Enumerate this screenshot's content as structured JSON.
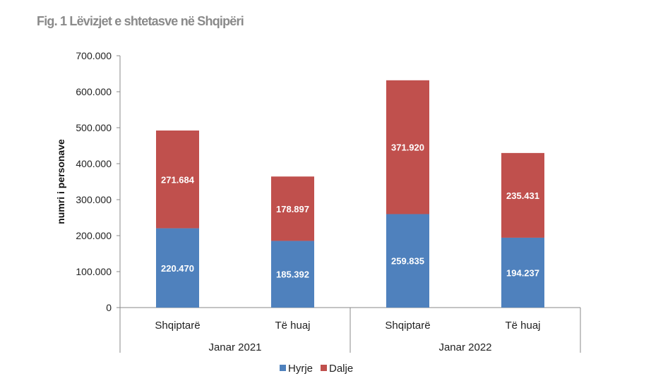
{
  "chart_data": {
    "type": "bar",
    "stacked": true,
    "title": "Fig. 1 Lëvizjet e shtetasve në Shqipëri",
    "xlabel": "",
    "ylabel": "numri i personave",
    "ylim": [
      0,
      700000
    ],
    "yticks": [
      0,
      100000,
      200000,
      300000,
      400000,
      500000,
      600000,
      700000
    ],
    "ytick_labels": [
      "0",
      "100.000",
      "200.000",
      "300.000",
      "400.000",
      "500.000",
      "600.000",
      "700.000"
    ],
    "groups": [
      "Janar 2021",
      "Janar 2022"
    ],
    "categories": [
      "Shqiptarë",
      "Të huaj",
      "Shqiptarë",
      "Të huaj"
    ],
    "series": [
      {
        "name": "Hyrje",
        "color": "#4f81bd",
        "values": [
          220470,
          185392,
          259835,
          194237
        ],
        "labels": [
          "220.470",
          "185.392",
          "259.835",
          "194.237"
        ]
      },
      {
        "name": "Dalje",
        "color": "#c0504d",
        "values": [
          271684,
          178897,
          371920,
          235431
        ],
        "labels": [
          "271.684",
          "178.897",
          "371.920",
          "235.431"
        ]
      }
    ],
    "legend": "bottom",
    "grid": false
  }
}
